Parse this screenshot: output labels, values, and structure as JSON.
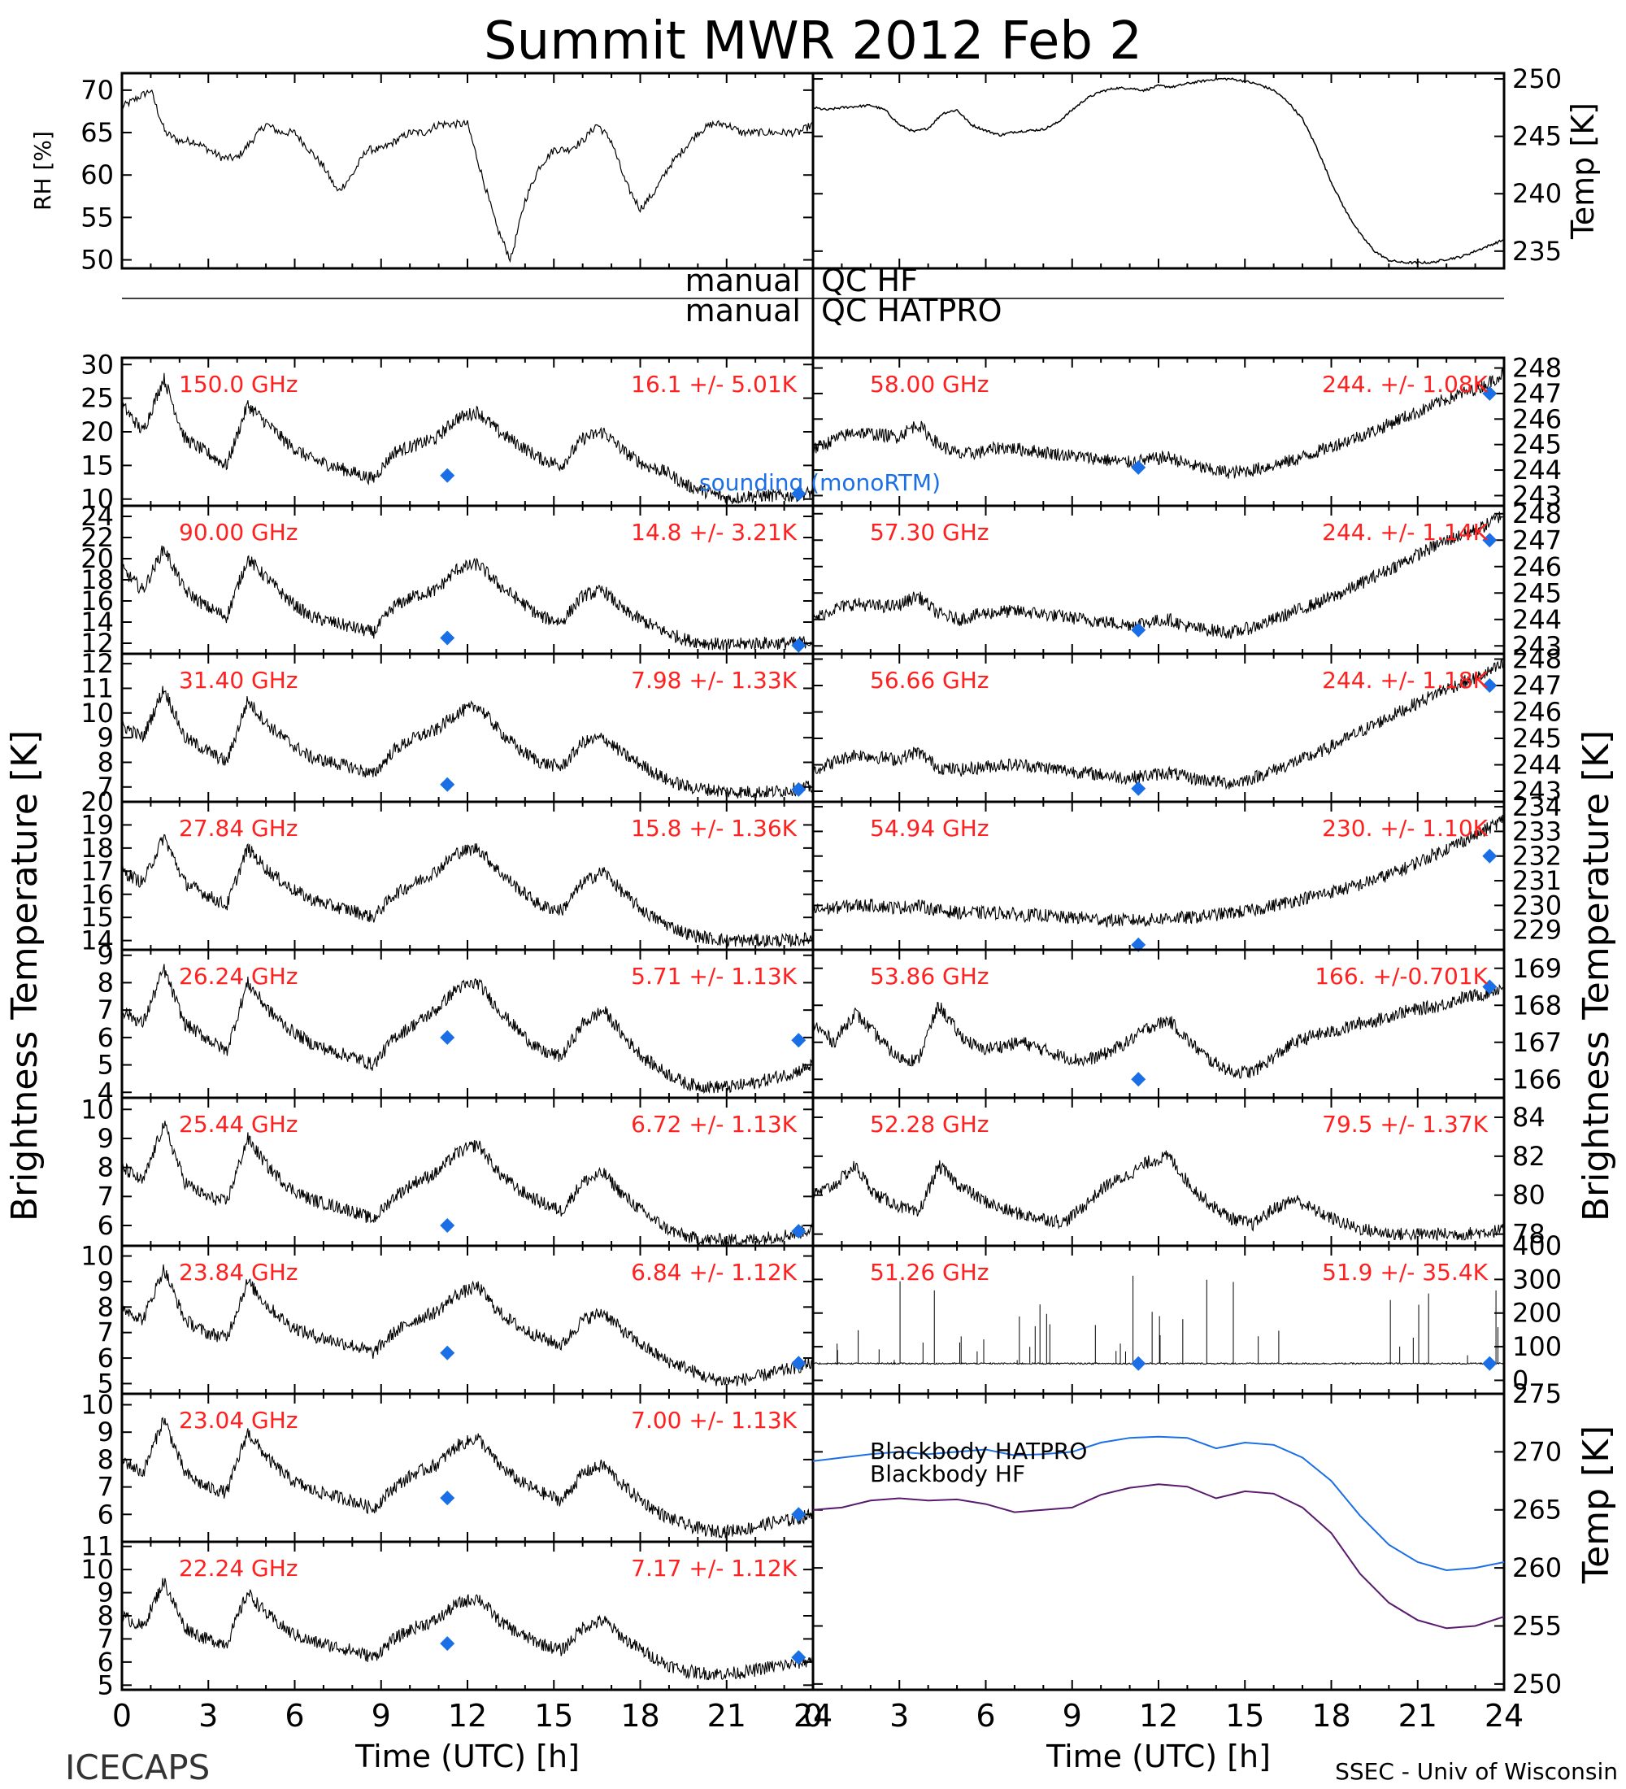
{
  "title": "Summit MWR 2012 Feb  2",
  "footer_left": "ICECAPS",
  "footer_right": "SSEC - Univ of Wisconsin",
  "colors": {
    "stats_text": "#ff2020",
    "sounding": "#1b6fe6",
    "hatpro_line": "#1b6fe6",
    "hf_line": "#5a1a6e",
    "trace": "#000000"
  },
  "chart_data": [
    {
      "id": "rh",
      "type": "line",
      "ylabel": "RH [%]",
      "ylim": [
        49,
        72
      ],
      "yticks": [
        50,
        55,
        60,
        65,
        70
      ],
      "x": [
        0,
        0.5,
        1,
        1.5,
        2,
        2.5,
        3,
        3.5,
        4,
        4.5,
        5,
        5.5,
        6,
        6.5,
        7,
        7.5,
        8,
        8.5,
        9,
        9.5,
        10,
        10.5,
        11,
        11.5,
        12,
        12.5,
        13,
        13.5,
        14,
        14.5,
        15,
        15.5,
        16,
        16.5,
        17,
        17.5,
        18,
        18.5,
        19,
        19.5,
        20,
        20.5,
        21,
        21.5,
        22,
        22.5,
        23,
        23.5,
        24
      ],
      "values": [
        68,
        69,
        70,
        65,
        64,
        64,
        63,
        62,
        62,
        64,
        66,
        65,
        65,
        63,
        61,
        58,
        60,
        63,
        63,
        64,
        65,
        65,
        66,
        66,
        66,
        60,
        54,
        50,
        57,
        61,
        63,
        63,
        64,
        66,
        64,
        59,
        56,
        58,
        61,
        63,
        65,
        66,
        66,
        65,
        65,
        65,
        65,
        65,
        66
      ]
    },
    {
      "id": "temp",
      "type": "line",
      "ylabel": "Temp [K]",
      "ylim": [
        233.5,
        250.5
      ],
      "yticks": [
        235,
        240,
        245,
        250
      ],
      "x": [
        0,
        0.5,
        1,
        1.5,
        2,
        2.5,
        3,
        3.5,
        4,
        4.5,
        5,
        5.5,
        6,
        6.5,
        7,
        7.5,
        8,
        8.5,
        9,
        9.5,
        10,
        10.5,
        11,
        11.5,
        12,
        12.5,
        13,
        13.5,
        14,
        14.5,
        15,
        15.5,
        16,
        16.5,
        17,
        17.5,
        18,
        18.5,
        19,
        19.5,
        20,
        20.5,
        21,
        21.5,
        22,
        22.5,
        23,
        23.5,
        24
      ],
      "values": [
        247.5,
        247.3,
        247.5,
        247.6,
        247.7,
        247.3,
        246,
        245.4,
        245.7,
        247,
        247.3,
        246,
        245.5,
        245.1,
        245.4,
        245.5,
        245.6,
        246.2,
        247.3,
        248.3,
        248.9,
        249.2,
        249.2,
        249,
        249.4,
        249.3,
        249.6,
        249.8,
        250,
        250,
        249.8,
        249.5,
        249,
        248,
        246.5,
        244,
        241,
        238.5,
        236.5,
        235,
        234.2,
        234,
        234,
        234,
        234.3,
        234.5,
        235,
        235.5,
        236
      ]
    }
  ],
  "qc_labels": {
    "left1": "manual",
    "right1": "QC HF",
    "left2": "manual",
    "right2": "QC HATPRO"
  },
  "tb_ylabel_left": "Brightness Temperature [K]",
  "tb_ylabel_right": "Brightness Temperature [K]",
  "temp_ylabel_right": "Temp [K]",
  "xlabel": "Time (UTC) [h]",
  "xticks": [
    0,
    3,
    6,
    9,
    12,
    15,
    18,
    21,
    24
  ],
  "sounding_label": "sounding (monoRTM)",
  "left_channels": [
    {
      "freq": "150.0 GHz",
      "stats": "16.1 +/-  5.01K",
      "ylim": [
        9,
        31
      ],
      "yticks": [
        10,
        15,
        20,
        25,
        30
      ],
      "values": [
        24,
        20,
        28,
        19,
        17,
        15,
        24,
        21,
        18,
        16,
        15,
        14,
        13,
        17,
        18,
        19,
        22,
        23,
        20,
        18,
        16,
        15,
        19,
        20,
        17,
        15,
        14,
        12,
        11,
        10,
        10.5,
        10.5,
        10.5,
        11
      ],
      "sondes": [
        {
          "x": 11.3,
          "y": 13.5
        },
        {
          "x": 23.5,
          "y": 10.8
        }
      ]
    },
    {
      "freq": "90.00 GHz",
      "stats": "14.8 +/-  3.21K",
      "ylim": [
        11,
        25
      ],
      "yticks": [
        12,
        14,
        16,
        18,
        20,
        22,
        24
      ],
      "values": [
        19,
        17,
        21,
        17,
        15.5,
        14.5,
        20,
        18,
        16,
        14.5,
        14,
        13.5,
        13,
        15.5,
        16.5,
        17,
        19,
        19.5,
        17.5,
        16,
        14.5,
        14,
        16.5,
        17,
        15,
        14,
        13,
        12.3,
        12,
        11.8,
        12,
        12,
        12,
        12.2
      ],
      "sondes": [
        {
          "x": 11.3,
          "y": 12.5
        },
        {
          "x": 23.5,
          "y": 11.8
        }
      ]
    },
    {
      "freq": "31.40 GHz",
      "stats": "7.98 +/- 1.33K",
      "ylim": [
        6.4,
        12.4
      ],
      "yticks": [
        7,
        8,
        9,
        10,
        11,
        12
      ],
      "values": [
        9.5,
        9,
        11,
        9,
        8.5,
        8,
        10.5,
        9.5,
        8.8,
        8.2,
        8,
        7.8,
        7.5,
        8.5,
        9,
        9.3,
        10,
        10.3,
        9.3,
        8.5,
        8,
        7.8,
        8.8,
        9,
        8.3,
        7.8,
        7.3,
        7,
        6.9,
        6.8,
        6.8,
        6.8,
        6.9,
        7
      ],
      "sondes": [
        {
          "x": 11.3,
          "y": 7.1
        },
        {
          "x": 23.5,
          "y": 6.9
        }
      ]
    },
    {
      "freq": "27.84 GHz",
      "stats": "15.8 +/- 1.36K",
      "ylim": [
        13.6,
        20
      ],
      "yticks": [
        14,
        15,
        16,
        17,
        18,
        19,
        20
      ],
      "values": [
        17,
        16.5,
        18.5,
        16.5,
        16,
        15.5,
        18,
        17,
        16.3,
        15.8,
        15.5,
        15.3,
        15,
        16,
        16.5,
        17,
        17.8,
        18,
        17,
        16.2,
        15.5,
        15.3,
        16.5,
        17,
        16,
        15.2,
        14.7,
        14.3,
        14.1,
        14,
        14,
        14,
        14,
        14.1
      ],
      "sondes": []
    },
    {
      "freq": "26.24 GHz",
      "stats": "5.71 +/- 1.13K",
      "ylim": [
        3.8,
        9.2
      ],
      "yticks": [
        4,
        5,
        6,
        7,
        8,
        9
      ],
      "values": [
        7,
        6.5,
        8.5,
        6.5,
        6,
        5.5,
        8,
        7,
        6.3,
        5.8,
        5.5,
        5.3,
        5,
        6,
        6.5,
        7,
        7.8,
        8,
        7,
        6.2,
        5.5,
        5.3,
        6.5,
        7,
        6,
        5.2,
        4.7,
        4.3,
        4.2,
        4.2,
        4.3,
        4.5,
        4.7,
        5
      ],
      "sondes": [
        {
          "x": 11.3,
          "y": 6
        },
        {
          "x": 23.5,
          "y": 5.9
        }
      ]
    },
    {
      "freq": "25.44 GHz",
      "stats": "6.72 +/- 1.13K",
      "ylim": [
        5.3,
        10.4
      ],
      "yticks": [
        6,
        7,
        8,
        9,
        10
      ],
      "values": [
        8,
        7.5,
        9.5,
        7.5,
        7,
        6.8,
        9,
        8,
        7.3,
        6.9,
        6.7,
        6.5,
        6.2,
        7,
        7.5,
        7.8,
        8.5,
        8.8,
        7.8,
        7.2,
        6.8,
        6.5,
        7.5,
        7.8,
        7,
        6.4,
        5.9,
        5.6,
        5.5,
        5.5,
        5.5,
        5.6,
        5.7,
        5.9
      ],
      "sondes": [
        {
          "x": 11.3,
          "y": 6
        },
        {
          "x": 23.5,
          "y": 5.8
        }
      ]
    },
    {
      "freq": "23.84 GHz",
      "stats": "6.84 +/- 1.12K",
      "ylim": [
        4.6,
        10.4
      ],
      "yticks": [
        5,
        6,
        7,
        8,
        9,
        10
      ],
      "values": [
        8,
        7.5,
        9.5,
        7.5,
        7,
        6.8,
        9,
        8,
        7.3,
        6.9,
        6.7,
        6.5,
        6.2,
        7,
        7.5,
        7.8,
        8.5,
        8.8,
        7.8,
        7.2,
        6.8,
        6.5,
        7.5,
        7.8,
        7,
        6.4,
        5.9,
        5.6,
        5.2,
        5.1,
        5.2,
        5.4,
        5.6,
        5.8
      ],
      "sondes": [
        {
          "x": 11.3,
          "y": 6.2
        },
        {
          "x": 23.5,
          "y": 5.8
        }
      ]
    },
    {
      "freq": "23.04 GHz",
      "stats": "7.00 +/- 1.13K",
      "ylim": [
        5,
        10.4
      ],
      "yticks": [
        6,
        7,
        8,
        9,
        10
      ],
      "values": [
        8,
        7.5,
        9.5,
        7.5,
        7,
        6.8,
        9,
        8,
        7.3,
        6.9,
        6.7,
        6.5,
        6.2,
        7,
        7.5,
        7.8,
        8.5,
        8.8,
        7.8,
        7.2,
        6.8,
        6.5,
        7.5,
        7.8,
        7,
        6.4,
        5.9,
        5.6,
        5.4,
        5.4,
        5.5,
        5.7,
        5.8,
        6
      ],
      "sondes": [
        {
          "x": 11.3,
          "y": 6.6
        },
        {
          "x": 23.5,
          "y": 6
        }
      ]
    },
    {
      "freq": "22.24 GHz",
      "stats": "7.17 +/- 1.12K",
      "ylim": [
        4.8,
        11.2
      ],
      "yticks": [
        5,
        6,
        7,
        8,
        9,
        10,
        11
      ],
      "values": [
        8,
        7.5,
        9.5,
        7.5,
        7,
        6.8,
        9,
        8,
        7.3,
        6.9,
        6.7,
        6.5,
        6.2,
        7,
        7.5,
        7.8,
        8.5,
        8.8,
        7.8,
        7.2,
        6.8,
        6.5,
        7.5,
        7.8,
        7,
        6.4,
        5.9,
        5.6,
        5.5,
        5.5,
        5.6,
        5.8,
        5.9,
        6.1
      ],
      "sondes": [
        {
          "x": 11.3,
          "y": 6.8
        },
        {
          "x": 23.5,
          "y": 6.2
        }
      ]
    }
  ],
  "right_channels": [
    {
      "freq": "58.00 GHz",
      "stats": "244. +/- 1.08K",
      "ylim": [
        242.6,
        248.4
      ],
      "yticks": [
        243,
        244,
        245,
        246,
        247,
        248
      ],
      "values": [
        244.8,
        245.2,
        245.5,
        245.4,
        245.3,
        245.8,
        245,
        244.6,
        244.7,
        244.9,
        244.8,
        244.7,
        244.6,
        244.5,
        244.4,
        244.3,
        244.4,
        244.5,
        244.2,
        244,
        243.9,
        244,
        244.2,
        244.4,
        244.7,
        245,
        245.3,
        245.6,
        246,
        246.3,
        246.7,
        247,
        247.3,
        247.8
      ],
      "sondes": [
        {
          "x": 11.3,
          "y": 244.1
        },
        {
          "x": 23.5,
          "y": 247
        }
      ]
    },
    {
      "freq": "57.30 GHz",
      "stats": "244. +/- 1.14K",
      "ylim": [
        242.7,
        248.3
      ],
      "yticks": [
        243,
        244,
        245,
        246,
        247,
        248
      ],
      "values": [
        244,
        244.4,
        244.6,
        244.5,
        244.5,
        244.9,
        244.2,
        244,
        244.2,
        244.3,
        244.3,
        244.2,
        244.1,
        244,
        243.9,
        243.8,
        243.9,
        244,
        243.7,
        243.6,
        243.5,
        243.7,
        244,
        244.3,
        244.6,
        244.9,
        245.3,
        245.7,
        246.1,
        246.5,
        246.9,
        247.2,
        247.5,
        248
      ],
      "sondes": [
        {
          "x": 11.3,
          "y": 243.6
        },
        {
          "x": 23.5,
          "y": 247
        }
      ]
    },
    {
      "freq": "56.66 GHz",
      "stats": "244. +/- 1.18K",
      "ylim": [
        242.6,
        248.2
      ],
      "yticks": [
        243,
        244,
        245,
        246,
        247,
        248
      ],
      "values": [
        243.8,
        244.1,
        244.4,
        244.3,
        244.2,
        244.5,
        243.9,
        243.8,
        243.9,
        244,
        244,
        243.9,
        243.8,
        243.7,
        243.6,
        243.5,
        243.6,
        243.7,
        243.5,
        243.4,
        243.3,
        243.5,
        243.8,
        244.1,
        244.4,
        244.8,
        245.2,
        245.6,
        246,
        246.4,
        246.8,
        247.1,
        247.4,
        247.8
      ],
      "sondes": [
        {
          "x": 11.3,
          "y": 243.1
        },
        {
          "x": 23.5,
          "y": 247
        }
      ]
    },
    {
      "freq": "54.94 GHz",
      "stats": "230. +/- 1.10K",
      "ylim": [
        228.2,
        234.2
      ],
      "yticks": [
        229,
        230,
        231,
        232,
        233,
        234
      ],
      "values": [
        229.8,
        229.9,
        230,
        230,
        229.9,
        230,
        229.8,
        229.7,
        229.7,
        229.7,
        229.6,
        229.6,
        229.5,
        229.5,
        229.4,
        229.4,
        229.4,
        229.5,
        229.5,
        229.6,
        229.7,
        229.8,
        230,
        230.2,
        230.4,
        230.6,
        230.8,
        231.1,
        231.4,
        231.8,
        232.2,
        232.6,
        233,
        233.5
      ],
      "sondes": [
        {
          "x": 11.3,
          "y": 228.4
        },
        {
          "x": 23.5,
          "y": 232
        }
      ]
    },
    {
      "freq": "53.86 GHz",
      "stats": "166. +/-0.701K",
      "ylim": [
        165.5,
        169.5
      ],
      "yticks": [
        166,
        167,
        168,
        169
      ],
      "values": [
        167.5,
        167,
        167.8,
        167.2,
        166.6,
        166.5,
        168,
        167.2,
        166.8,
        166.9,
        167,
        166.8,
        166.6,
        166.5,
        166.7,
        167,
        167.4,
        167.6,
        167,
        166.5,
        166.2,
        166.2,
        166.6,
        167,
        167.2,
        167.3,
        167.5,
        167.6,
        167.8,
        167.9,
        168,
        168.2,
        168.3,
        168.5
      ],
      "sondes": [
        {
          "x": 11.3,
          "y": 166
        },
        {
          "x": 23.5,
          "y": 168.5
        }
      ]
    },
    {
      "freq": "52.28 GHz",
      "stats": "79.5 +/- 1.37K",
      "ylim": [
        77.4,
        85
      ],
      "yticks": [
        78,
        80,
        82,
        84
      ],
      "values": [
        80,
        80.5,
        81.5,
        80,
        79.5,
        79,
        81.5,
        80.5,
        79.8,
        79.3,
        79,
        78.8,
        78.6,
        79.5,
        80.5,
        81,
        81.7,
        82,
        80.5,
        79.5,
        78.8,
        78.5,
        79.3,
        79.8,
        79.2,
        78.7,
        78.3,
        78.1,
        78,
        78,
        78,
        78,
        78.1,
        78.2
      ],
      "sondes": []
    },
    {
      "freq": "51.26 GHz",
      "stats": "51.9 +/- 35.4K",
      "ylim": [
        -40,
        400
      ],
      "yticks": [
        0,
        100,
        200,
        300,
        400
      ],
      "values": [
        50,
        50,
        50,
        50,
        50,
        50,
        50,
        50,
        50,
        50,
        50,
        50,
        50,
        50,
        50,
        50,
        50,
        50,
        50,
        50,
        50,
        50,
        50,
        50,
        50,
        50,
        50,
        50,
        50,
        50,
        50,
        50,
        50,
        50
      ],
      "sondes": [
        {
          "x": 11.3,
          "y": 50
        },
        {
          "x": 23.5,
          "y": 50
        }
      ]
    }
  ],
  "blackbody": {
    "ylabel": "Temp [K]",
    "ylim": [
      249.5,
      275
    ],
    "yticks": [
      250,
      255,
      260,
      265,
      270,
      275
    ],
    "x": [
      0,
      1,
      2,
      3,
      4,
      5,
      6,
      7,
      8,
      9,
      10,
      11,
      12,
      13,
      14,
      15,
      16,
      17,
      18,
      19,
      20,
      21,
      22,
      23,
      24
    ],
    "series": [
      {
        "name": "Blackbody HATPRO",
        "color": "#1b6fe6",
        "values": [
          269.2,
          269.5,
          269.8,
          270,
          269.8,
          270,
          270.2,
          269.7,
          269.8,
          270,
          270.8,
          271.2,
          271.3,
          271.2,
          270.3,
          270.8,
          270.6,
          269.5,
          267.5,
          264.5,
          262,
          260.5,
          259.8,
          260,
          260.5
        ]
      },
      {
        "name": "Blackbody HF",
        "color": "#5a1a6e",
        "values": [
          265,
          265.2,
          265.8,
          266,
          265.8,
          265.9,
          265.5,
          264.8,
          265,
          265.2,
          266.3,
          266.9,
          267.2,
          267,
          266,
          266.6,
          266.4,
          265.2,
          263,
          259.5,
          257,
          255.5,
          254.8,
          255,
          255.8
        ]
      }
    ]
  }
}
